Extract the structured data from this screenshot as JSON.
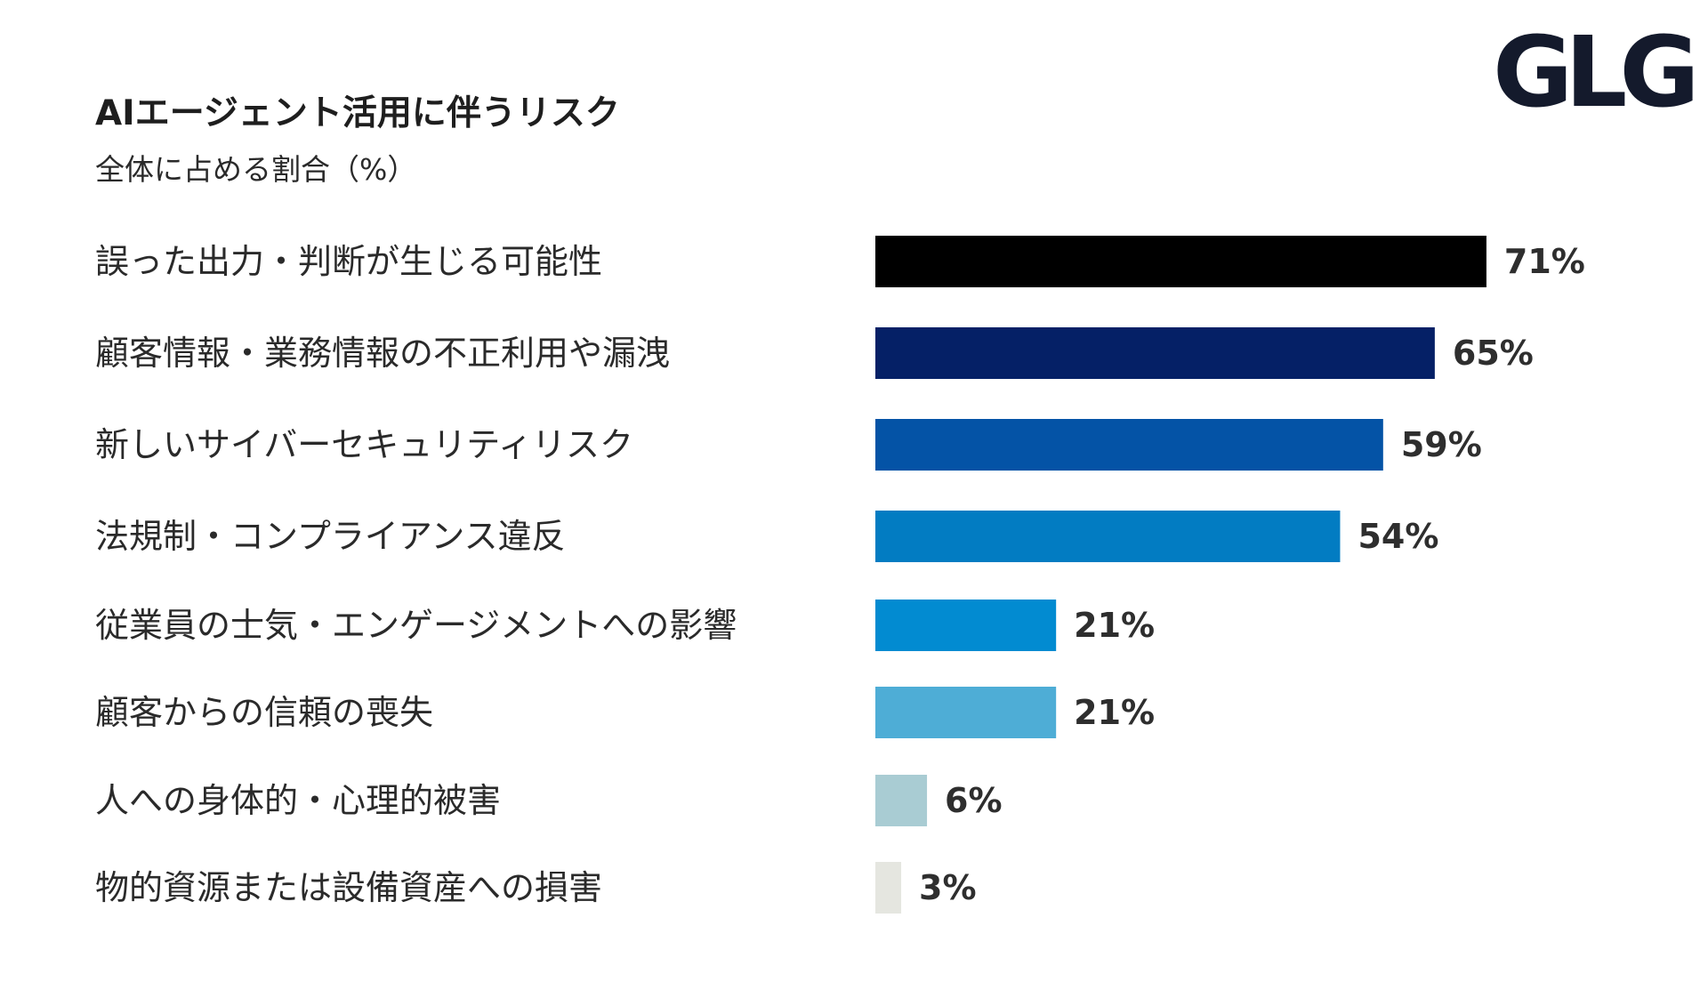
{
  "header": {
    "title": "AIエージェント活用に伴うリスク",
    "subtitle": "全体に占める割合（%）",
    "logo": "GLG"
  },
  "chart_data": {
    "type": "bar",
    "orientation": "horizontal",
    "title": "AIエージェント活用に伴うリスク",
    "subtitle": "全体に占める割合（%）",
    "xlabel": "",
    "ylabel": "",
    "xlim": [
      0,
      100
    ],
    "grid": false,
    "legend": "none",
    "categories": [
      "誤った出力・判断が生じる可能性",
      "顧客情報・業務情報の不正利用や漏洩",
      "新しいサイバーセキュリティリスク",
      "法規制・コンプライアンス違反",
      "従業員の士気・エンゲージメントへの影響",
      "顧客からの信頼の喪失",
      "人への身体的・心理的被害",
      "物的資源または設備資産への損害"
    ],
    "values": [
      71,
      65,
      59,
      54,
      21,
      21,
      6,
      3
    ],
    "value_labels": [
      "71%",
      "65%",
      "59%",
      "54%",
      "21%",
      "21%",
      "6%",
      "3%"
    ],
    "colors": [
      "#000000",
      "#052066",
      "#0453a6",
      "#027cc2",
      "#028bd1",
      "#4eadd6",
      "#a9ccd3",
      "#e5e6e0"
    ]
  }
}
